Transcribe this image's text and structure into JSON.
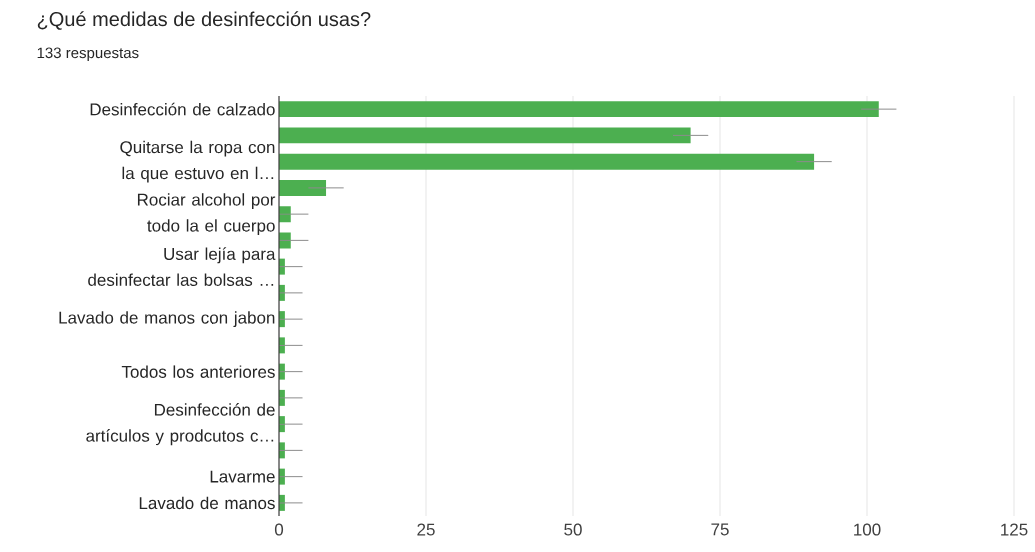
{
  "chart_data": {
    "type": "bar",
    "orientation": "horizontal",
    "title": "¿Qué medidas de desinfección usas?",
    "subtitle": "133 respuestas",
    "categories": [
      "Desinfección de calzado",
      null,
      "Quitarse la ropa con la que estuvo en l…",
      null,
      "Rociar alcohol por todo la el cuerpo",
      null,
      "Usar lejía para desinfectar las bolsas …",
      null,
      "Lavado de manos con jabon",
      null,
      "Todos los anteriores",
      null,
      "Desinfección de artículos y prodcutos c…",
      null,
      "Lavarme",
      "Lavado de manos"
    ],
    "values": [
      102,
      70,
      91,
      8,
      2,
      2,
      1,
      1,
      1,
      1,
      1,
      1,
      1,
      1,
      1,
      1
    ],
    "errors": [
      3,
      3,
      3,
      3,
      3,
      3,
      3,
      3,
      3,
      3,
      3,
      3,
      3,
      3,
      3,
      3
    ],
    "color": "#4caf50",
    "xlim": [
      0,
      125
    ],
    "xticks": [
      0,
      25,
      50,
      75,
      100,
      125
    ],
    "grid": "x"
  }
}
